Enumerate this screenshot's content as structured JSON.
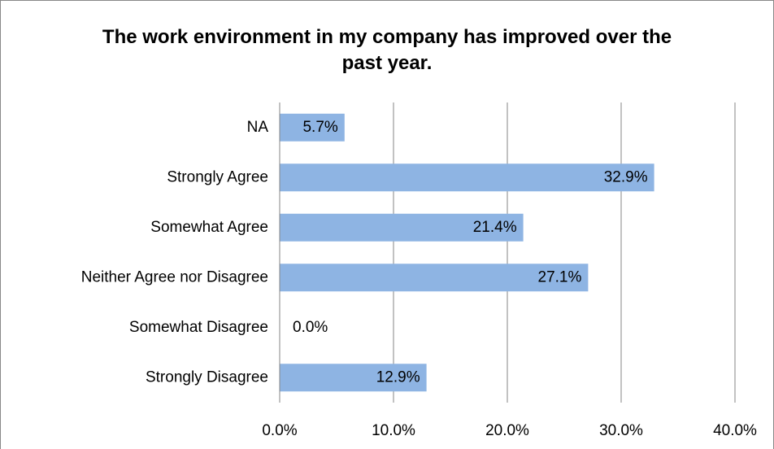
{
  "chart_data": {
    "type": "hbar",
    "title": "The  work environment in my company has improved over the past year.",
    "categories": [
      "NA",
      "Strongly Agree",
      "Somewhat Agree",
      "Neither Agree nor Disagree",
      "Somewhat Disagree",
      "Strongly Disagree"
    ],
    "values": [
      5.7,
      32.9,
      21.4,
      27.1,
      0.0,
      12.9
    ],
    "value_labels": [
      "5.7%",
      "32.9%",
      "21.4%",
      "27.1%",
      "0.0%",
      "12.9%"
    ],
    "color": "#8eb4e3",
    "xlim": [
      0,
      40
    ],
    "xticks": [
      {
        "value": 0,
        "label": "0.0%"
      },
      {
        "value": 10,
        "label": "10.0%"
      },
      {
        "value": 20,
        "label": "20.0%"
      },
      {
        "value": 30,
        "label": "30.0%"
      },
      {
        "value": 40,
        "label": "40.0%"
      }
    ],
    "grid": true
  }
}
